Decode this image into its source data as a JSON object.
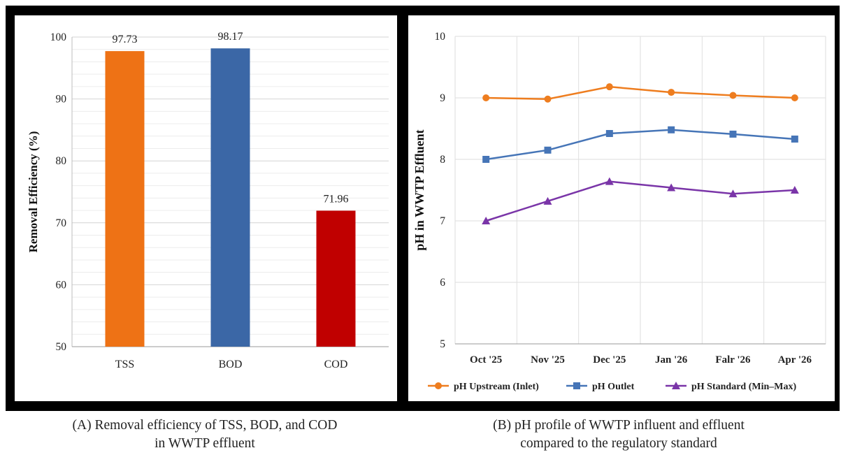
{
  "chart_data": [
    {
      "type": "bar",
      "ylabel": "Removal Efficiency (%)",
      "categories": [
        "TSS",
        "BOD",
        "COD"
      ],
      "values": [
        97.73,
        98.17,
        71.96
      ],
      "value_labels": [
        "97.73",
        "98.17",
        "71.96"
      ],
      "colors": [
        "#ee7215",
        "#3b67a6",
        "#c00000"
      ],
      "ylim": [
        50,
        100
      ],
      "yticks": [
        "50",
        "60",
        "70",
        "80",
        "90",
        "100"
      ],
      "grid": true,
      "caption_lines": [
        "(A)  Removal efficiency of TSS, BOD, and COD",
        "in WWTP effluent"
      ]
    },
    {
      "type": "line",
      "ylabel": "pH in WWTP Effluent",
      "categories": [
        "Oct '25",
        "Nov '25",
        "Dec '25",
        "Jan '26",
        "Falr '26",
        "Apr '26"
      ],
      "ylim": [
        5,
        10
      ],
      "yticks": [
        "5",
        "6",
        "7",
        "8",
        "9",
        "10"
      ],
      "grid": true,
      "legend_position": "bottom",
      "series": [
        {
          "name": "pH Upstream (Inlet)",
          "values": [
            9.0,
            8.98,
            9.18,
            9.09,
            9.04,
            9.0
          ],
          "color": "#ee7d1f",
          "marker": "circle"
        },
        {
          "name": "pH Outlet",
          "values": [
            8.0,
            8.15,
            8.42,
            8.48,
            8.41,
            8.33
          ],
          "color": "#4675b7",
          "marker": "square"
        },
        {
          "name": "pH Standard (Min–Max)",
          "values": [
            7.0,
            7.32,
            7.64,
            7.54,
            7.44,
            7.5
          ],
          "color": "#7a35a8",
          "marker": "triangle"
        }
      ],
      "caption_lines": [
        "(B) pH profile of WWTP influent and effluent",
        "compared to the regulatory standard"
      ]
    }
  ]
}
